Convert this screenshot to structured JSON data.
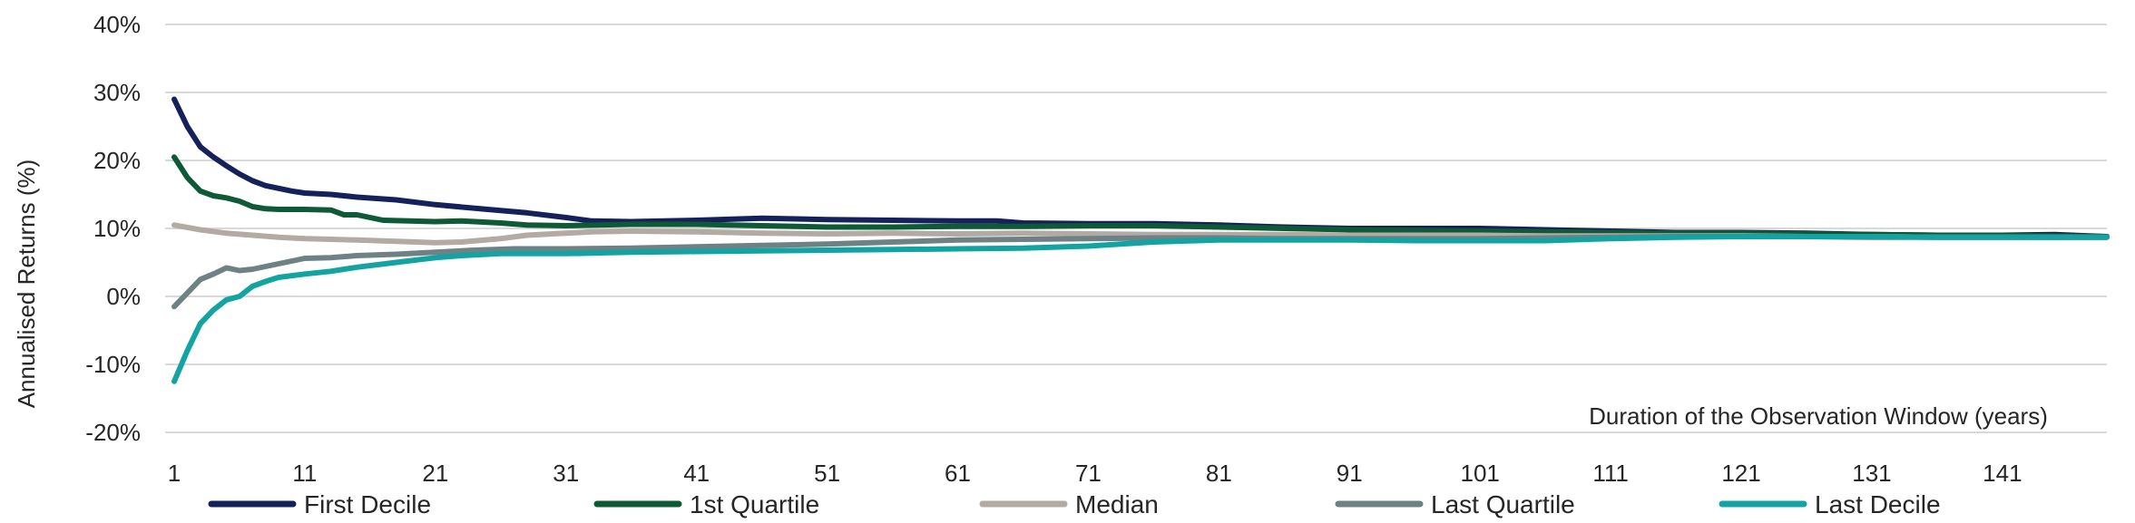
{
  "chart_data": {
    "type": "line",
    "title": "",
    "xlabel": "Duration of the Observation Window (years)",
    "ylabel": "Annualised Returns (%)",
    "xlim": [
      1,
      149
    ],
    "ylim": [
      -20,
      40
    ],
    "y_ticks": [
      "40%",
      "30%",
      "20%",
      "10%",
      "0%",
      "-10%",
      "-20%"
    ],
    "y_tick_values": [
      40,
      30,
      20,
      10,
      0,
      -10,
      -20
    ],
    "x_ticks": [
      "1",
      "11",
      "21",
      "31",
      "41",
      "51",
      "61",
      "71",
      "81",
      "91",
      "101",
      "111",
      "121",
      "131",
      "141"
    ],
    "x_tick_values": [
      1,
      11,
      21,
      31,
      41,
      51,
      61,
      71,
      81,
      91,
      101,
      111,
      121,
      131,
      141
    ],
    "grid": true,
    "legend_position": "bottom",
    "series": [
      {
        "name": "First Decile",
        "color": "#14215a",
        "points": [
          [
            1,
            29
          ],
          [
            2,
            25
          ],
          [
            3,
            22
          ],
          [
            4,
            20.5
          ],
          [
            5,
            19.2
          ],
          [
            6,
            18
          ],
          [
            7,
            17
          ],
          [
            8,
            16.3
          ],
          [
            9,
            15.9
          ],
          [
            10,
            15.5
          ],
          [
            11,
            15.2
          ],
          [
            13,
            15
          ],
          [
            15,
            14.6
          ],
          [
            18,
            14.2
          ],
          [
            21,
            13.5
          ],
          [
            25,
            12.8
          ],
          [
            28,
            12.3
          ],
          [
            31,
            11.6
          ],
          [
            33,
            11.1
          ],
          [
            36,
            11
          ],
          [
            41,
            11.2
          ],
          [
            46,
            11.5
          ],
          [
            51,
            11.3
          ],
          [
            56,
            11.2
          ],
          [
            61,
            11.1
          ],
          [
            64,
            11.1
          ],
          [
            66,
            10.8
          ],
          [
            71,
            10.7
          ],
          [
            76,
            10.7
          ],
          [
            81,
            10.5
          ],
          [
            86,
            10.2
          ],
          [
            91,
            10
          ],
          [
            96,
            10
          ],
          [
            101,
            10
          ],
          [
            106,
            9.8
          ],
          [
            111,
            9.6
          ],
          [
            116,
            9.4
          ],
          [
            121,
            9.4
          ],
          [
            126,
            9.3
          ],
          [
            131,
            9.1
          ],
          [
            136,
            9
          ],
          [
            141,
            9
          ],
          [
            145,
            9.1
          ],
          [
            149,
            8.8
          ]
        ]
      },
      {
        "name": "1st Quartile",
        "color": "#0f5a36",
        "points": [
          [
            1,
            20.5
          ],
          [
            2,
            17.5
          ],
          [
            3,
            15.5
          ],
          [
            4,
            14.8
          ],
          [
            5,
            14.5
          ],
          [
            6,
            14
          ],
          [
            7,
            13.2
          ],
          [
            8,
            12.9
          ],
          [
            9,
            12.8
          ],
          [
            11,
            12.8
          ],
          [
            13,
            12.7
          ],
          [
            14,
            12
          ],
          [
            15,
            12
          ],
          [
            17,
            11.2
          ],
          [
            21,
            11
          ],
          [
            23,
            11.1
          ],
          [
            26,
            10.8
          ],
          [
            28,
            10.5
          ],
          [
            31,
            10.4
          ],
          [
            36,
            10.6
          ],
          [
            41,
            10.6
          ],
          [
            46,
            10.4
          ],
          [
            51,
            10.2
          ],
          [
            56,
            10.2
          ],
          [
            61,
            10.3
          ],
          [
            66,
            10.3
          ],
          [
            71,
            10.4
          ],
          [
            76,
            10.4
          ],
          [
            81,
            10.2
          ],
          [
            86,
            10
          ],
          [
            91,
            9.8
          ],
          [
            96,
            9.7
          ],
          [
            101,
            9.6
          ],
          [
            106,
            9.5
          ],
          [
            111,
            9.4
          ],
          [
            116,
            9.3
          ],
          [
            121,
            9.3
          ],
          [
            126,
            9.2
          ],
          [
            131,
            9.1
          ],
          [
            136,
            9
          ],
          [
            141,
            9
          ],
          [
            149,
            8.8
          ]
        ]
      },
      {
        "name": "Median",
        "color": "#b2aaa3",
        "points": [
          [
            1,
            10.5
          ],
          [
            3,
            9.8
          ],
          [
            5,
            9.3
          ],
          [
            7,
            9
          ],
          [
            9,
            8.7
          ],
          [
            11,
            8.5
          ],
          [
            13,
            8.4
          ],
          [
            15,
            8.3
          ],
          [
            18,
            8.1
          ],
          [
            21,
            7.9
          ],
          [
            23,
            8
          ],
          [
            26,
            8.5
          ],
          [
            28,
            9
          ],
          [
            31,
            9.3
          ],
          [
            33,
            9.5
          ],
          [
            36,
            9.6
          ],
          [
            41,
            9.5
          ],
          [
            46,
            9.3
          ],
          [
            51,
            9.2
          ],
          [
            56,
            9.3
          ],
          [
            61,
            9.2
          ],
          [
            66,
            9.3
          ],
          [
            71,
            9.2
          ],
          [
            76,
            9.1
          ],
          [
            81,
            9.1
          ],
          [
            86,
            9.1
          ],
          [
            91,
            9
          ],
          [
            96,
            9
          ],
          [
            101,
            9
          ],
          [
            106,
            8.9
          ],
          [
            111,
            8.9
          ],
          [
            116,
            8.9
          ],
          [
            121,
            8.9
          ],
          [
            126,
            8.8
          ],
          [
            131,
            8.8
          ],
          [
            136,
            8.7
          ],
          [
            141,
            8.7
          ],
          [
            149,
            8.7
          ]
        ]
      },
      {
        "name": "Last Quartile",
        "color": "#6e8286",
        "points": [
          [
            1,
            -1.5
          ],
          [
            2,
            0.5
          ],
          [
            3,
            2.5
          ],
          [
            4,
            3.3
          ],
          [
            5,
            4.2
          ],
          [
            6,
            3.8
          ],
          [
            7,
            4
          ],
          [
            9,
            4.8
          ],
          [
            11,
            5.6
          ],
          [
            13,
            5.7
          ],
          [
            15,
            6
          ],
          [
            18,
            6.2
          ],
          [
            21,
            6.5
          ],
          [
            24,
            6.8
          ],
          [
            27,
            7
          ],
          [
            31,
            7
          ],
          [
            36,
            7.1
          ],
          [
            41,
            7.3
          ],
          [
            46,
            7.5
          ],
          [
            51,
            7.7
          ],
          [
            56,
            8
          ],
          [
            61,
            8.3
          ],
          [
            66,
            8.4
          ],
          [
            71,
            8.5
          ],
          [
            76,
            8.6
          ],
          [
            81,
            8.6
          ],
          [
            86,
            8.5
          ],
          [
            91,
            8.5
          ],
          [
            96,
            8.5
          ],
          [
            101,
            8.5
          ],
          [
            106,
            8.6
          ],
          [
            111,
            8.7
          ],
          [
            116,
            8.8
          ],
          [
            121,
            8.8
          ],
          [
            126,
            8.8
          ],
          [
            131,
            8.7
          ],
          [
            136,
            8.7
          ],
          [
            141,
            8.7
          ],
          [
            149,
            8.7
          ]
        ]
      },
      {
        "name": "Last Decile",
        "color": "#14a3a3",
        "points": [
          [
            1,
            -12.5
          ],
          [
            2,
            -8
          ],
          [
            3,
            -4
          ],
          [
            4,
            -2
          ],
          [
            5,
            -0.5
          ],
          [
            6,
            0
          ],
          [
            7,
            1.5
          ],
          [
            8,
            2.2
          ],
          [
            9,
            2.8
          ],
          [
            11,
            3.3
          ],
          [
            13,
            3.7
          ],
          [
            15,
            4.3
          ],
          [
            18,
            5
          ],
          [
            21,
            5.7
          ],
          [
            23,
            6
          ],
          [
            26,
            6.3
          ],
          [
            31,
            6.3
          ],
          [
            36,
            6.5
          ],
          [
            41,
            6.6
          ],
          [
            46,
            6.7
          ],
          [
            51,
            6.8
          ],
          [
            56,
            6.9
          ],
          [
            61,
            7
          ],
          [
            66,
            7.1
          ],
          [
            71,
            7.4
          ],
          [
            76,
            8
          ],
          [
            81,
            8.3
          ],
          [
            86,
            8.3
          ],
          [
            91,
            8.3
          ],
          [
            96,
            8.2
          ],
          [
            101,
            8.2
          ],
          [
            106,
            8.2
          ],
          [
            111,
            8.5
          ],
          [
            116,
            8.7
          ],
          [
            121,
            8.8
          ],
          [
            126,
            8.8
          ],
          [
            131,
            8.8
          ],
          [
            136,
            8.7
          ],
          [
            141,
            8.7
          ],
          [
            149,
            8.7
          ]
        ]
      }
    ]
  }
}
